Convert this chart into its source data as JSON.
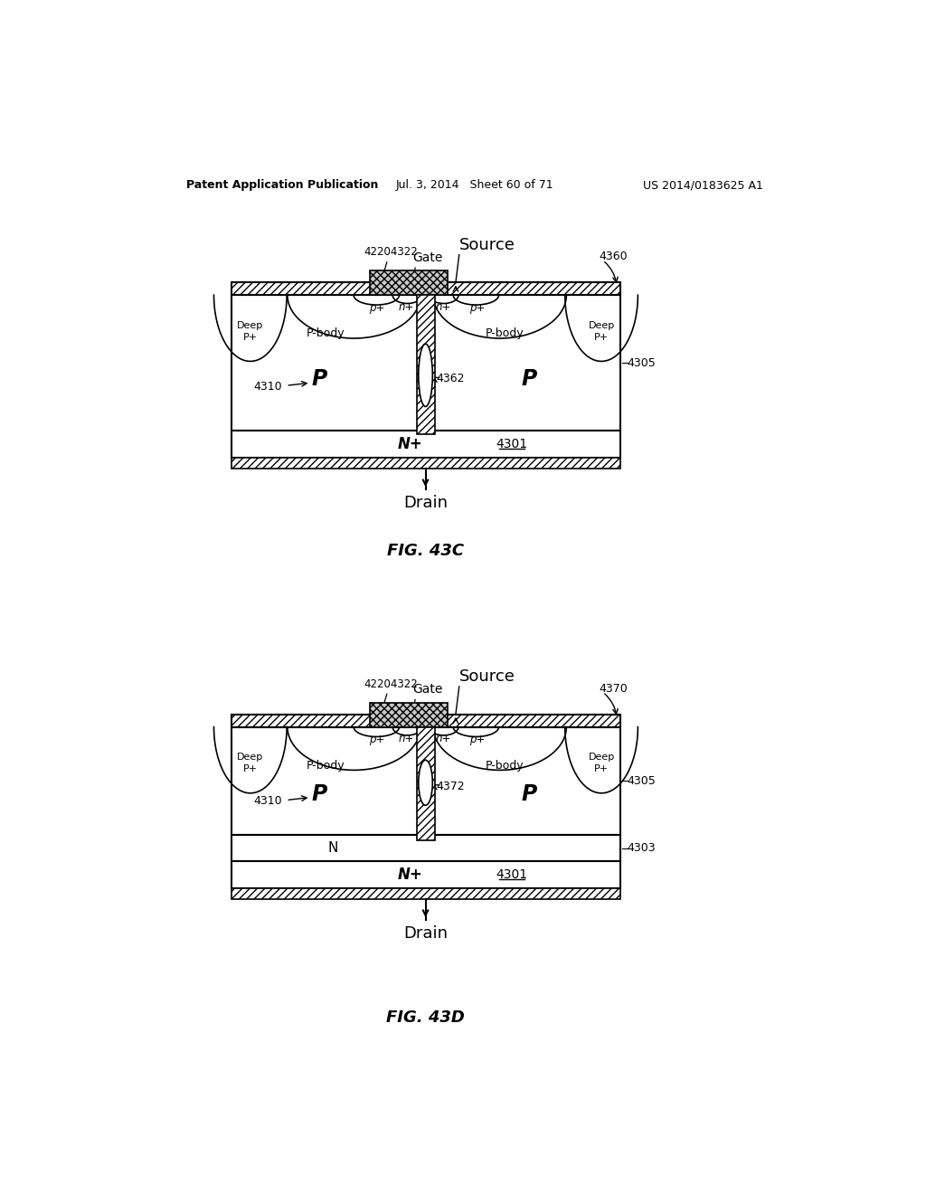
{
  "header_left": "Patent Application Publication",
  "header_mid": "Jul. 3, 2014   Sheet 60 of 71",
  "header_right": "US 2014/0183625 A1",
  "fig_c_label": "FIG. 43C",
  "fig_d_label": "FIG. 43D",
  "background": "#ffffff",
  "fig43c": {
    "ref_4360": "4360",
    "ref_4362": "4362",
    "ref_4310": "4310",
    "ref_4301": "4301",
    "ref_4305": "4305",
    "ref_42204322": "42204322",
    "label_gate": "Gate",
    "label_source": "Source",
    "label_drain": "Drain"
  },
  "fig43d": {
    "ref_4370": "4370",
    "ref_4372": "4372",
    "ref_4310": "4310",
    "ref_4301": "4301",
    "ref_4303": "4303",
    "ref_4305": "4305",
    "ref_42204322": "42204322",
    "label_gate": "Gate",
    "label_source": "Source",
    "label_drain": "Drain",
    "label_n": "N"
  }
}
